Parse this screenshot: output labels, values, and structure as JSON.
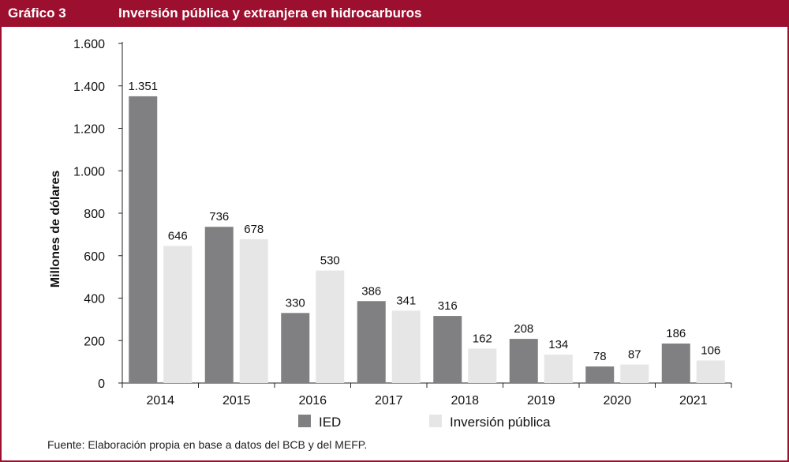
{
  "header": {
    "label": "Gráfico 3",
    "title": "Inversión pública y extranjera en hidrocarburos"
  },
  "source": "Fuente: Elaboración propia en base a datos del BCB y del MEFP.",
  "colors": {
    "accent": "#9c0f2f",
    "ied": "#808083",
    "publica": "#e6e6e7"
  },
  "chart_data": {
    "type": "bar",
    "ylabel": "Millones de dólares",
    "categories": [
      "2014",
      "2015",
      "2016",
      "2017",
      "2018",
      "2019",
      "2020",
      "2021"
    ],
    "series": [
      {
        "name": "IED",
        "values": [
          1351,
          736,
          330,
          386,
          316,
          208,
          78,
          186
        ],
        "labels": [
          "1.351",
          "736",
          "330",
          "386",
          "316",
          "208",
          "78",
          "186"
        ]
      },
      {
        "name": "Inversión pública",
        "values": [
          646,
          678,
          530,
          341,
          162,
          134,
          87,
          106
        ],
        "labels": [
          "646",
          "678",
          "530",
          "341",
          "162",
          "134",
          "87",
          "106"
        ]
      }
    ],
    "ylim": [
      0,
      1600
    ],
    "yticks": [
      0,
      200,
      400,
      600,
      800,
      1000,
      1200,
      1400,
      1600
    ],
    "ytick_labels": [
      "0",
      "200",
      "400",
      "600",
      "800",
      "1.000",
      "1.200",
      "1.400",
      "1.600"
    ],
    "grid": false,
    "legend": "bottom"
  }
}
